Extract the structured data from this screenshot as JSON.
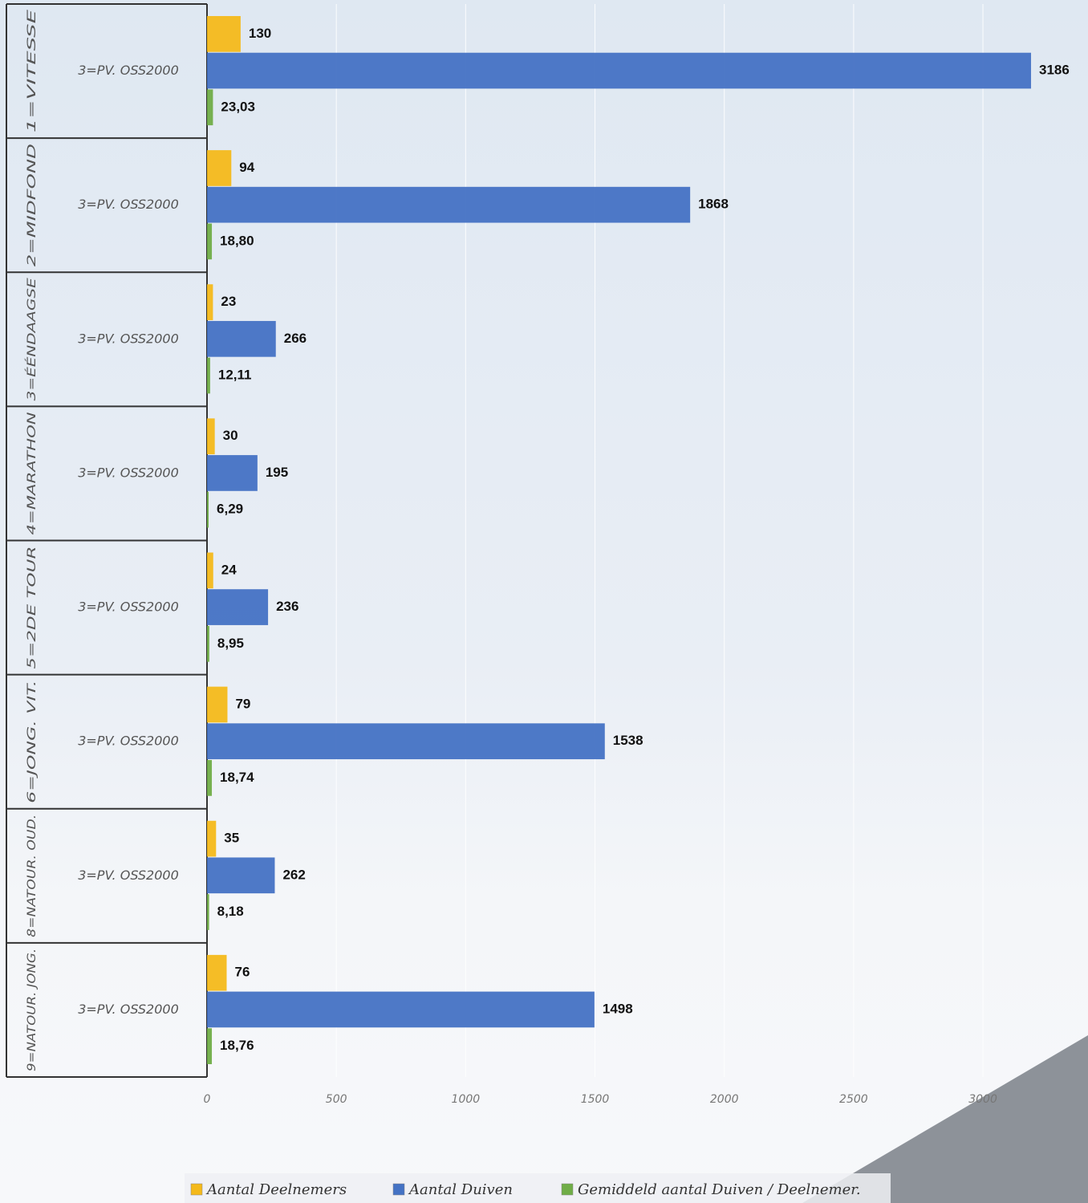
{
  "chart_data": {
    "type": "bar",
    "orientation": "horizontal",
    "category_groups": [
      "1=VITESSE",
      "2=MIDFOND",
      "3=ÉÉNDAAGSE",
      "4=MARATHON",
      "5=2DE TOUR",
      "6=JONG. VIT.",
      "8=NATOUR. OUD.",
      "9=NATOUR. JONG."
    ],
    "categories": [
      "3=PV. OSS2000",
      "3=PV. OSS2000",
      "3=PV. OSS2000",
      "3=PV. OSS2000",
      "3=PV. OSS2000",
      "3=PV. OSS2000",
      "3=PV. OSS2000",
      "3=PV. OSS2000"
    ],
    "series": [
      {
        "name": "Aantal Deelnemers",
        "color": "#f4b91a",
        "values": [
          130,
          94,
          23,
          30,
          24,
          79,
          35,
          76
        ]
      },
      {
        "name": "Aantal Duiven",
        "color": "#4472c4",
        "values": [
          3186,
          1868,
          266,
          195,
          236,
          1538,
          262,
          1498
        ]
      },
      {
        "name": "Gemiddeld aantal Duiven / Deelnemer.",
        "color": "#70ad47",
        "values": [
          23.03,
          18.8,
          12.11,
          6.29,
          8.95,
          18.74,
          8.18,
          18.76
        ],
        "value_labels": [
          "23,03",
          "18,80",
          "12,11",
          "6,29",
          "8,95",
          "18,74",
          "8,18",
          "18,76"
        ]
      }
    ],
    "xlim": [
      0,
      3400
    ],
    "xticks": [
      0,
      500,
      1000,
      1500,
      2000,
      2500,
      3000
    ],
    "grid": true,
    "legend": "bottom"
  }
}
